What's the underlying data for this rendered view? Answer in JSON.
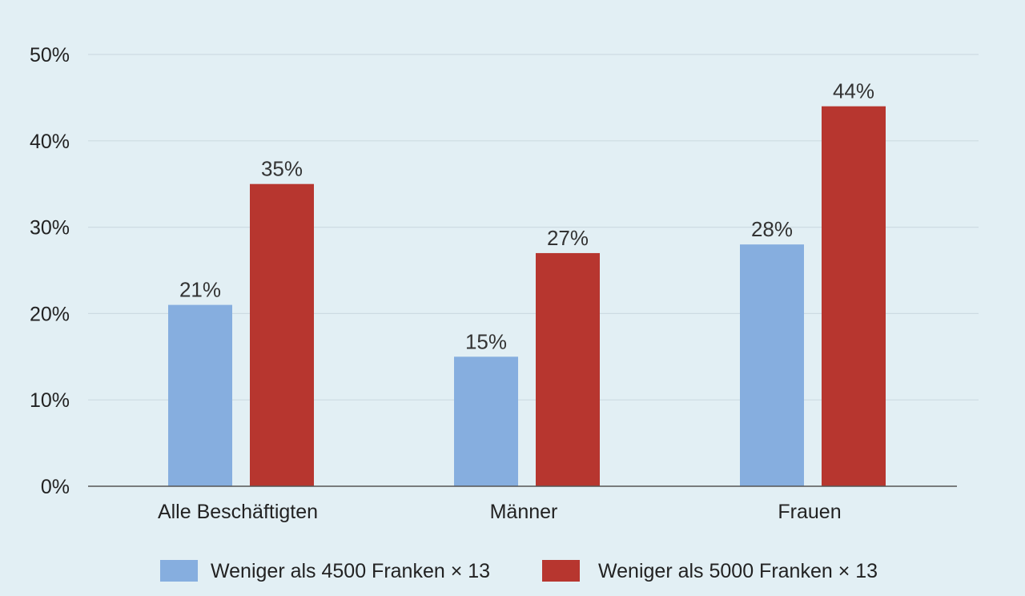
{
  "chart_data": {
    "type": "bar",
    "categories": [
      "Alle Beschäftigten",
      "Männer",
      "Frauen"
    ],
    "series": [
      {
        "name": "Weniger als 4500 Franken × 13",
        "values": [
          21,
          15,
          28
        ],
        "labels": [
          "21%",
          "15%",
          "28%"
        ]
      },
      {
        "name": "Weniger als 5000 Franken × 13",
        "values": [
          35,
          27,
          44
        ],
        "labels": [
          "35%",
          "27%",
          "44%"
        ]
      }
    ],
    "ylim": [
      0,
      50
    ],
    "yticks": [
      "0%",
      "10%",
      "20%",
      "30%",
      "40%",
      "50%"
    ],
    "ytick_values": [
      0,
      10,
      20,
      30,
      40,
      50
    ],
    "grid": true,
    "legend_position": "bottom",
    "colors": [
      "#86aedf",
      "#b7362f"
    ],
    "background": "#e2eff4"
  }
}
